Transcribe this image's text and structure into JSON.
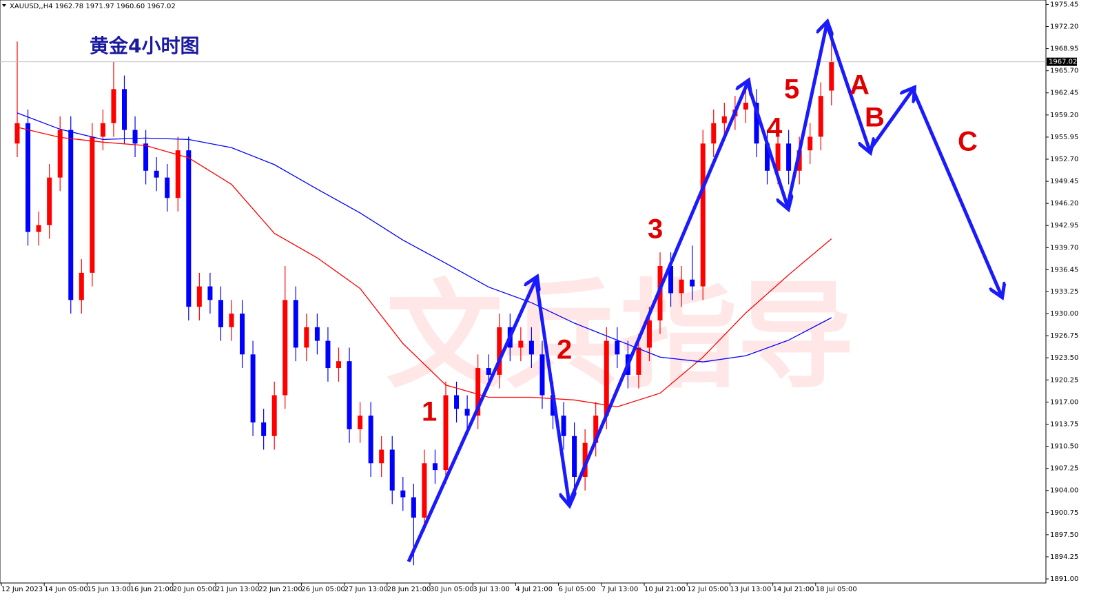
{
  "chart_data": {
    "type": "candlestick",
    "header": "XAUUSD,,H4  1962.78 1971.97 1960.60 1967.02",
    "title": "黄金4小时图",
    "watermark": "文兵指导",
    "up_color": "#ff0000",
    "down_color": "#0000ff",
    "categories": [
      "12 Jun 2023",
      null,
      null,
      null,
      "14 Jun 05:00",
      null,
      null,
      null,
      "15 Jun 13:00",
      null,
      null,
      null,
      "16 Jun 21:00",
      null,
      null,
      null,
      "20 Jun 05:00",
      null,
      null,
      null,
      "21 Jun 13:00",
      null,
      null,
      null,
      "22 Jun 21:00",
      null,
      null,
      null,
      "26 Jun 05:00",
      null,
      null,
      null,
      "27 Jun 13:00",
      null,
      null,
      null,
      "28 Jun 21:00",
      null,
      null,
      null,
      "30 Jun 05:00",
      null,
      null,
      null,
      "3 Jul 13:00",
      null,
      null,
      null,
      "4 Jul 21:00",
      null,
      null,
      null,
      "6 Jul 05:00",
      null,
      null,
      null,
      "7 Jul 13:00",
      null,
      null,
      null,
      "10 Jul 21:00",
      null,
      null,
      null,
      "12 Jul 05:00",
      null,
      null,
      null,
      "13 Jul 13:00",
      null,
      null,
      null,
      "14 Jul 21:00",
      null,
      null,
      null,
      "18 Jul 05:00"
    ],
    "open": [
      1955,
      1958,
      1942,
      1943,
      1950,
      1957,
      1932,
      1936,
      1956,
      1958,
      1963,
      1957,
      1955,
      1951,
      1950,
      1947,
      1954,
      1931,
      1934,
      1932,
      1928,
      1930,
      1924,
      1914,
      1912,
      1918,
      1932,
      1925,
      1928,
      1926,
      1922,
      1923,
      1913,
      1915,
      1908,
      1910,
      1904,
      1903,
      1900,
      1908,
      1907,
      1918,
      1916,
      1915,
      1922,
      1921,
      1928,
      1925,
      1926,
      1924,
      1918,
      1915,
      1912,
      1906,
      1911,
      1915,
      1926,
      1924,
      1921,
      1925,
      1929,
      1937,
      1933,
      1935,
      1934,
      1955,
      1958,
      1959,
      1960,
      1961,
      1955,
      1951,
      1955,
      1951,
      1954,
      1956,
      1962.78
    ],
    "high": [
      1970,
      1960,
      1945,
      1952,
      1959,
      1959,
      1938,
      1958,
      1960,
      1967,
      1965,
      1959,
      1957,
      1953,
      1952,
      1956,
      1956,
      1936,
      1936,
      1934,
      1932,
      1932,
      1926,
      1916,
      1920,
      1937,
      1934,
      1930,
      1930,
      1928,
      1925,
      1925,
      1917,
      1917,
      1912,
      1912,
      1906,
      1905,
      1910,
      1910,
      1920,
      1920,
      1918,
      1924,
      1924,
      1930,
      1930,
      1928,
      1928,
      1926,
      1920,
      1917,
      1914,
      1913,
      1917,
      1928,
      1928,
      1926,
      1927,
      1931,
      1939,
      1939,
      1937,
      1940,
      1957,
      1960,
      1961,
      1962,
      1963,
      1963,
      1957,
      1957,
      1957,
      1956,
      1958,
      1964,
      1971.97
    ],
    "low": [
      1953,
      1940,
      1940,
      1941,
      1948,
      1930,
      1930,
      1934,
      1954,
      1956,
      1955,
      1953,
      1949,
      1948,
      1945,
      1945,
      1929,
      1929,
      1930,
      1926,
      1926,
      1922,
      1912,
      1910,
      1910,
      1916,
      1923,
      1923,
      1924,
      1920,
      1920,
      1911,
      1911,
      1906,
      1906,
      1902,
      1901,
      1893,
      1898,
      1905,
      1905,
      1914,
      1913,
      1913,
      1919,
      1919,
      1923,
      1923,
      1922,
      1916,
      1913,
      1910,
      1904,
      1904,
      1909,
      1913,
      1922,
      1919,
      1919,
      1923,
      1927,
      1931,
      1931,
      1932,
      1932,
      1953,
      1956,
      1957,
      1958,
      1953,
      1949,
      1949,
      1949,
      1949,
      1952,
      1954,
      1960.6
    ],
    "close": [
      1958,
      1942,
      1943,
      1950,
      1957,
      1932,
      1936,
      1956,
      1958,
      1963,
      1957,
      1955,
      1951,
      1950,
      1947,
      1954,
      1931,
      1934,
      1932,
      1928,
      1930,
      1924,
      1914,
      1912,
      1918,
      1932,
      1925,
      1928,
      1926,
      1922,
      1923,
      1913,
      1915,
      1908,
      1910,
      1904,
      1903,
      1900,
      1908,
      1907,
      1918,
      1916,
      1915,
      1922,
      1921,
      1928,
      1925,
      1926,
      1924,
      1918,
      1915,
      1912,
      1906,
      1911,
      1915,
      1926,
      1924,
      1921,
      1925,
      1929,
      1937,
      1933,
      1935,
      1934,
      1955,
      1958,
      1959,
      1960,
      1961,
      1955,
      1951,
      1955,
      1951,
      1954,
      1956,
      1962,
      1967.02
    ],
    "moving_averages": [
      {
        "color": "#ff0000",
        "x": [
          0,
          4,
          8,
          12,
          16,
          20,
          24,
          28,
          32,
          36,
          40,
          44,
          48,
          52,
          56,
          60,
          64,
          68,
          72,
          76
        ],
        "values": [
          1957.4,
          1955.9,
          1955.2,
          1954.7,
          1952.9,
          1949.0,
          1941.8,
          1938.2,
          1933.7,
          1925.6,
          1919.5,
          1917.7,
          1917.7,
          1917.3,
          1916.3,
          1918.3,
          1923.6,
          1930.1,
          1935.7,
          1941.0
        ]
      },
      {
        "color": "#0000ff",
        "x": [
          0,
          4,
          8,
          12,
          16,
          20,
          24,
          28,
          32,
          36,
          40,
          44,
          48,
          52,
          56,
          60,
          64,
          68,
          72,
          76
        ],
        "values": [
          1959.5,
          1957.1,
          1955.6,
          1955.8,
          1955.6,
          1954.4,
          1951.9,
          1948.3,
          1944.8,
          1940.8,
          1937.4,
          1933.9,
          1931.6,
          1928.6,
          1926.1,
          1923.6,
          1922.9,
          1923.8,
          1926.1,
          1929.4
        ]
      }
    ],
    "current_price": {
      "value": 1967.02,
      "label": "1967.02"
    },
    "annotations": [
      "1",
      "2",
      "3",
      "4",
      "5",
      "A",
      "B",
      "C"
    ],
    "ylim": [
      1890.4,
      1976.1
    ],
    "yticks": [
      {
        "value": 1975.45,
        "label": "1975.45"
      },
      {
        "value": 1972.2,
        "label": "1972.20"
      },
      {
        "value": 1968.95,
        "label": "1968.95"
      },
      {
        "value": 1965.7,
        "label": "1965.70"
      },
      {
        "value": 1962.45,
        "label": "1962.45"
      },
      {
        "value": 1959.2,
        "label": "1959.20"
      },
      {
        "value": 1955.95,
        "label": "1955.95"
      },
      {
        "value": 1952.7,
        "label": "1952.70"
      },
      {
        "value": 1949.45,
        "label": "1949.45"
      },
      {
        "value": 1946.2,
        "label": "1946.20"
      },
      {
        "value": 1942.95,
        "label": "1942.95"
      },
      {
        "value": 1939.7,
        "label": "1939.70"
      },
      {
        "value": 1936.45,
        "label": "1936.45"
      },
      {
        "value": 1933.25,
        "label": "1933.25"
      },
      {
        "value": 1930,
        "label": "1930.00"
      },
      {
        "value": 1926.75,
        "label": "1926.75"
      },
      {
        "value": 1923.5,
        "label": "1923.50"
      },
      {
        "value": 1920.25,
        "label": "1920.25"
      },
      {
        "value": 1917,
        "label": "1917.00"
      },
      {
        "value": 1913.75,
        "label": "1913.75"
      },
      {
        "value": 1910.5,
        "label": "1910.50"
      },
      {
        "value": 1907.25,
        "label": "1907.25"
      },
      {
        "value": 1904,
        "label": "1904.00"
      },
      {
        "value": 1900.75,
        "label": "1900.75"
      },
      {
        "value": 1897.5,
        "label": "1897.50"
      },
      {
        "value": 1894.25,
        "label": "1894.25"
      },
      {
        "value": 1891,
        "label": "1891.00"
      }
    ]
  }
}
